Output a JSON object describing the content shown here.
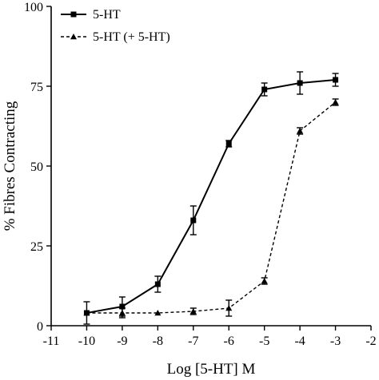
{
  "chart_data": {
    "type": "line",
    "xlabel": "Log [5-HT] M",
    "ylabel": "% Fibres Contracting",
    "xlim": [
      -11,
      -2
    ],
    "ylim": [
      0,
      100
    ],
    "xticks": [
      -11,
      -10,
      -9,
      -8,
      -7,
      -6,
      -5,
      -4,
      -3,
      -2
    ],
    "xtick_labels": [
      "-11",
      "-10",
      "-9",
      "-8",
      "-7",
      "-6",
      "-5",
      "-4",
      "-3",
      "-2"
    ],
    "yticks": [
      0,
      25,
      50,
      75,
      100
    ],
    "ytick_labels": [
      "0",
      "25",
      "50",
      "75",
      "100"
    ],
    "grid": false,
    "legend_position": "top-left",
    "series": [
      {
        "name": "5-HT",
        "marker": "square",
        "line": "solid",
        "color": "#000000",
        "x": [
          -10,
          -9,
          -8,
          -7,
          -6,
          -5,
          -4,
          -3
        ],
        "y": [
          4,
          6,
          13,
          33,
          57,
          74,
          76,
          77
        ],
        "err": [
          3.5,
          3,
          2.5,
          4.5,
          1,
          2,
          3.5,
          2
        ]
      },
      {
        "name": "5-HT (+ 5-HT)",
        "marker": "triangle",
        "line": "dashed",
        "color": "#000000",
        "x": [
          -10,
          -9,
          -8,
          -7,
          -6,
          -5,
          -4,
          -3
        ],
        "y": [
          4,
          4,
          4,
          4.5,
          5.5,
          14,
          61,
          70
        ],
        "err": [
          0,
          1.5,
          0,
          1,
          2.5,
          1,
          1,
          1
        ]
      }
    ]
  }
}
